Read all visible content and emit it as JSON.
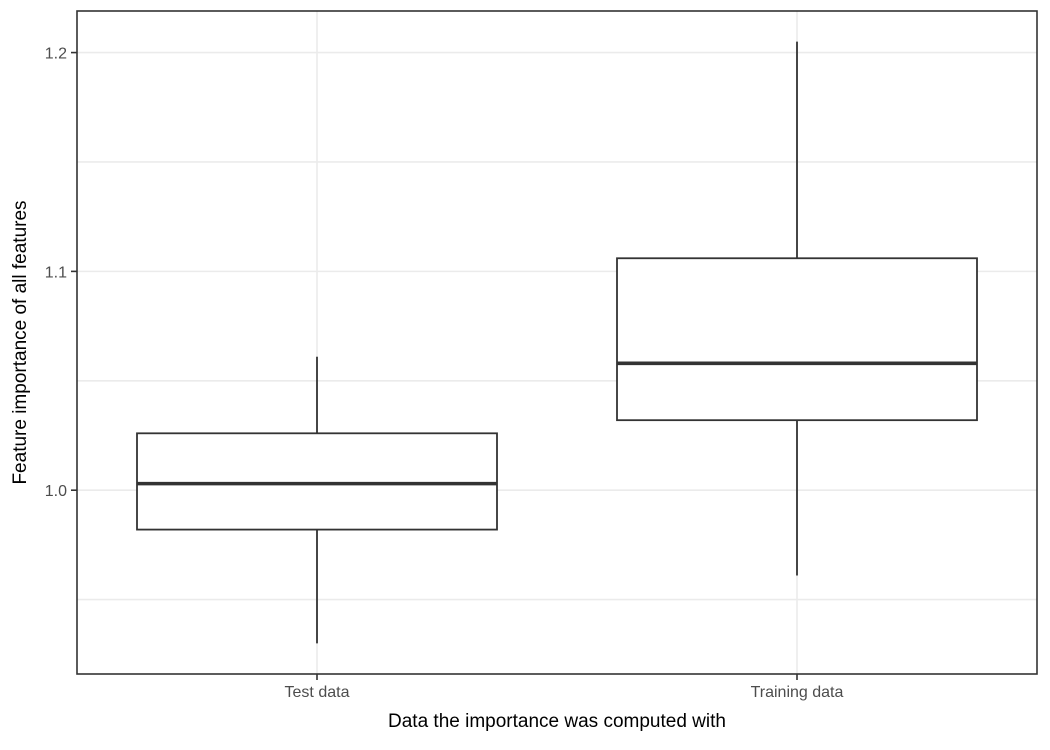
{
  "chart_data": {
    "type": "boxplot",
    "title": "",
    "xlabel": "Data the importance was computed with",
    "ylabel": "Feature importance of all features",
    "categories": [
      "Test data",
      "Training data"
    ],
    "boxes": [
      {
        "category": "Test data",
        "whisker_low": 0.93,
        "q1": 0.982,
        "median": 1.003,
        "q3": 1.026,
        "whisker_high": 1.061
      },
      {
        "category": "Training data",
        "whisker_low": 0.961,
        "q1": 1.032,
        "median": 1.058,
        "q3": 1.106,
        "whisker_high": 1.205
      }
    ],
    "ylim": [
      0.916,
      1.219
    ],
    "y_ticks": [
      1.0,
      1.1,
      1.2
    ],
    "y_tick_labels": [
      "1.0",
      "1.1",
      "1.2"
    ],
    "y_minor_ticks": [
      0.95,
      1.05,
      1.15
    ],
    "grid": true,
    "legend": "none",
    "colors": {
      "box_fill": "#ffffff",
      "box_stroke": "#333333",
      "grid": "#ebebeb",
      "tick_label": "#4d4d4d"
    }
  }
}
